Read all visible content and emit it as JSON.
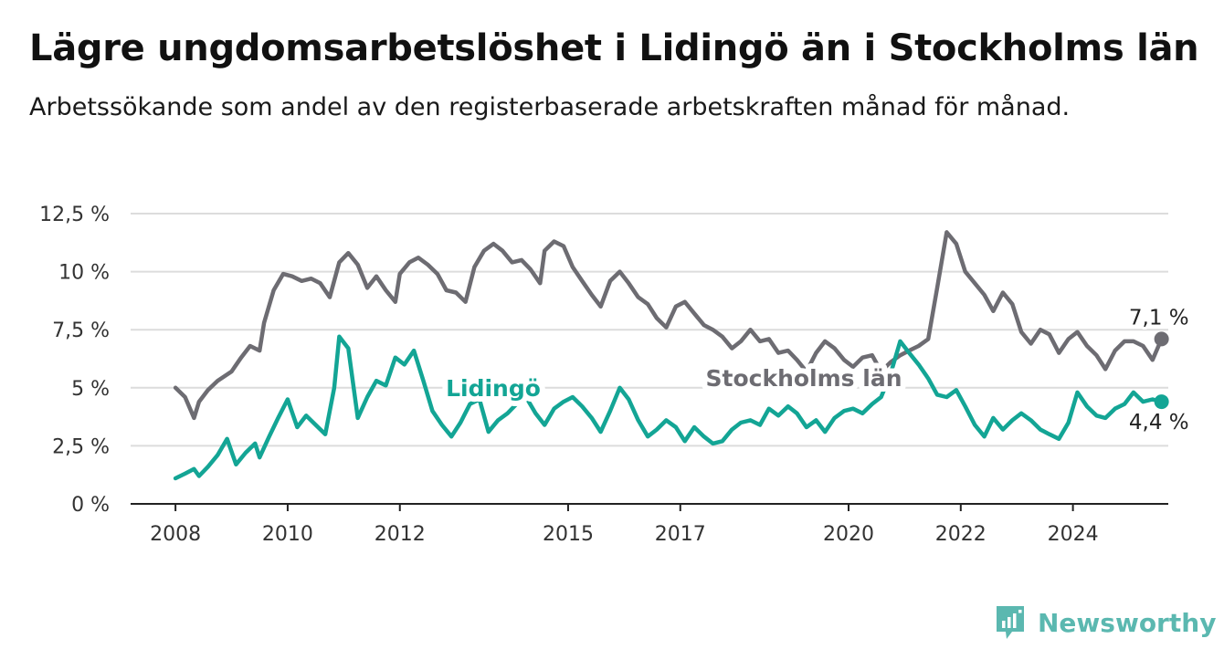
{
  "title": "Lägre ungdomsarbetslöshet i Lidingö än i Stockholms län",
  "subtitle": "Arbetssökande som andel av den registerbaserade arbetskraften månad för månad.",
  "brand": "Newsworthy",
  "colors": {
    "stockholm": "#6d6c72",
    "lidingo": "#13a595",
    "grid": "#dcdcdc",
    "axis": "#222222"
  },
  "chart_data": {
    "type": "line",
    "y_unit": "%",
    "ylim": [
      0,
      12.5
    ],
    "y_ticks": [
      {
        "value": 0,
        "label": "0 %"
      },
      {
        "value": 2.5,
        "label": "2,5 %"
      },
      {
        "value": 5,
        "label": "5 %"
      },
      {
        "value": 7.5,
        "label": "7,5 %"
      },
      {
        "value": 10,
        "label": "10 %"
      },
      {
        "value": 12.5,
        "label": "12,5 %"
      }
    ],
    "x_ticks": [
      {
        "value": 2008,
        "label": "2008"
      },
      {
        "value": 2010,
        "label": "2010"
      },
      {
        "value": 2012,
        "label": "2012"
      },
      {
        "value": 2015,
        "label": "2015"
      },
      {
        "value": 2017,
        "label": "2017"
      },
      {
        "value": 2020,
        "label": "2020"
      },
      {
        "value": 2022,
        "label": "2022"
      },
      {
        "value": 2024,
        "label": "2024"
      }
    ],
    "xlim": [
      2007.2,
      2025.7
    ],
    "grid": true,
    "series": [
      {
        "name": "Stockholms län",
        "key": "stockholm",
        "end_label": "7,1 %",
        "points": [
          [
            2008.0,
            5.0
          ],
          [
            2008.17,
            4.6
          ],
          [
            2008.33,
            3.7
          ],
          [
            2008.42,
            4.4
          ],
          [
            2008.58,
            4.9
          ],
          [
            2008.75,
            5.3
          ],
          [
            2009.0,
            5.7
          ],
          [
            2009.17,
            6.3
          ],
          [
            2009.33,
            6.8
          ],
          [
            2009.5,
            6.6
          ],
          [
            2009.58,
            7.8
          ],
          [
            2009.75,
            9.2
          ],
          [
            2009.92,
            9.9
          ],
          [
            2010.08,
            9.8
          ],
          [
            2010.25,
            9.6
          ],
          [
            2010.42,
            9.7
          ],
          [
            2010.58,
            9.5
          ],
          [
            2010.75,
            8.9
          ],
          [
            2010.92,
            10.4
          ],
          [
            2011.08,
            10.8
          ],
          [
            2011.25,
            10.3
          ],
          [
            2011.42,
            9.3
          ],
          [
            2011.58,
            9.8
          ],
          [
            2011.75,
            9.2
          ],
          [
            2011.92,
            8.7
          ],
          [
            2012.0,
            9.9
          ],
          [
            2012.17,
            10.4
          ],
          [
            2012.33,
            10.6
          ],
          [
            2012.5,
            10.3
          ],
          [
            2012.67,
            9.9
          ],
          [
            2012.83,
            9.2
          ],
          [
            2013.0,
            9.1
          ],
          [
            2013.17,
            8.7
          ],
          [
            2013.33,
            10.2
          ],
          [
            2013.5,
            10.9
          ],
          [
            2013.67,
            11.2
          ],
          [
            2013.83,
            10.9
          ],
          [
            2014.0,
            10.4
          ],
          [
            2014.17,
            10.5
          ],
          [
            2014.33,
            10.1
          ],
          [
            2014.5,
            9.5
          ],
          [
            2014.58,
            10.9
          ],
          [
            2014.75,
            11.3
          ],
          [
            2014.92,
            11.1
          ],
          [
            2015.08,
            10.2
          ],
          [
            2015.25,
            9.6
          ],
          [
            2015.42,
            9.0
          ],
          [
            2015.58,
            8.5
          ],
          [
            2015.75,
            9.6
          ],
          [
            2015.92,
            10.0
          ],
          [
            2016.08,
            9.5
          ],
          [
            2016.25,
            8.9
          ],
          [
            2016.42,
            8.6
          ],
          [
            2016.58,
            8.0
          ],
          [
            2016.75,
            7.6
          ],
          [
            2016.92,
            8.5
          ],
          [
            2017.08,
            8.7
          ],
          [
            2017.25,
            8.2
          ],
          [
            2017.42,
            7.7
          ],
          [
            2017.58,
            7.5
          ],
          [
            2017.75,
            7.2
          ],
          [
            2017.92,
            6.7
          ],
          [
            2018.08,
            7.0
          ],
          [
            2018.25,
            7.5
          ],
          [
            2018.42,
            7.0
          ],
          [
            2018.58,
            7.1
          ],
          [
            2018.75,
            6.5
          ],
          [
            2018.92,
            6.6
          ],
          [
            2019.08,
            6.2
          ],
          [
            2019.25,
            5.7
          ],
          [
            2019.42,
            6.5
          ],
          [
            2019.58,
            7.0
          ],
          [
            2019.75,
            6.7
          ],
          [
            2019.92,
            6.2
          ],
          [
            2020.08,
            5.9
          ],
          [
            2020.25,
            6.3
          ],
          [
            2020.42,
            6.4
          ],
          [
            2020.58,
            5.7
          ],
          [
            2020.75,
            6.1
          ],
          [
            2020.92,
            6.4
          ],
          [
            2021.08,
            6.6
          ],
          [
            2021.25,
            6.8
          ],
          [
            2021.42,
            7.1
          ],
          [
            2021.58,
            9.3
          ],
          [
            2021.75,
            11.7
          ],
          [
            2021.92,
            11.2
          ],
          [
            2022.08,
            10.0
          ],
          [
            2022.25,
            9.5
          ],
          [
            2022.42,
            9.0
          ],
          [
            2022.58,
            8.3
          ],
          [
            2022.75,
            9.1
          ],
          [
            2022.92,
            8.6
          ],
          [
            2023.08,
            7.4
          ],
          [
            2023.25,
            6.9
          ],
          [
            2023.42,
            7.5
          ],
          [
            2023.58,
            7.3
          ],
          [
            2023.75,
            6.5
          ],
          [
            2023.92,
            7.1
          ],
          [
            2024.08,
            7.4
          ],
          [
            2024.25,
            6.8
          ],
          [
            2024.42,
            6.4
          ],
          [
            2024.58,
            5.8
          ],
          [
            2024.75,
            6.6
          ],
          [
            2024.92,
            7.0
          ],
          [
            2025.08,
            7.0
          ],
          [
            2025.25,
            6.8
          ],
          [
            2025.42,
            6.2
          ],
          [
            2025.58,
            7.1
          ]
        ]
      },
      {
        "name": "Lidingö",
        "key": "lidingo",
        "end_label": "4,4 %",
        "points": [
          [
            2008.0,
            1.1
          ],
          [
            2008.17,
            1.3
          ],
          [
            2008.33,
            1.5
          ],
          [
            2008.42,
            1.2
          ],
          [
            2008.58,
            1.6
          ],
          [
            2008.75,
            2.1
          ],
          [
            2008.92,
            2.8
          ],
          [
            2009.08,
            1.7
          ],
          [
            2009.25,
            2.2
          ],
          [
            2009.42,
            2.6
          ],
          [
            2009.5,
            2.0
          ],
          [
            2009.67,
            2.9
          ],
          [
            2009.83,
            3.7
          ],
          [
            2010.0,
            4.5
          ],
          [
            2010.17,
            3.3
          ],
          [
            2010.33,
            3.8
          ],
          [
            2010.5,
            3.4
          ],
          [
            2010.67,
            3.0
          ],
          [
            2010.83,
            5.0
          ],
          [
            2010.92,
            7.2
          ],
          [
            2011.08,
            6.7
          ],
          [
            2011.25,
            3.7
          ],
          [
            2011.42,
            4.6
          ],
          [
            2011.58,
            5.3
          ],
          [
            2011.75,
            5.1
          ],
          [
            2011.92,
            6.3
          ],
          [
            2012.08,
            6.0
          ],
          [
            2012.25,
            6.6
          ],
          [
            2012.42,
            5.3
          ],
          [
            2012.58,
            4.0
          ],
          [
            2012.75,
            3.4
          ],
          [
            2012.92,
            2.9
          ],
          [
            2013.08,
            3.5
          ],
          [
            2013.25,
            4.3
          ],
          [
            2013.42,
            4.5
          ],
          [
            2013.58,
            3.1
          ],
          [
            2013.75,
            3.6
          ],
          [
            2013.92,
            3.9
          ],
          [
            2014.08,
            4.3
          ],
          [
            2014.25,
            4.6
          ],
          [
            2014.42,
            3.9
          ],
          [
            2014.58,
            3.4
          ],
          [
            2014.75,
            4.1
          ],
          [
            2014.92,
            4.4
          ],
          [
            2015.08,
            4.6
          ],
          [
            2015.25,
            4.2
          ],
          [
            2015.42,
            3.7
          ],
          [
            2015.58,
            3.1
          ],
          [
            2015.75,
            4.0
          ],
          [
            2015.92,
            5.0
          ],
          [
            2016.08,
            4.5
          ],
          [
            2016.25,
            3.6
          ],
          [
            2016.42,
            2.9
          ],
          [
            2016.58,
            3.2
          ],
          [
            2016.75,
            3.6
          ],
          [
            2016.92,
            3.3
          ],
          [
            2017.08,
            2.7
          ],
          [
            2017.25,
            3.3
          ],
          [
            2017.42,
            2.9
          ],
          [
            2017.58,
            2.6
          ],
          [
            2017.75,
            2.7
          ],
          [
            2017.92,
            3.2
          ],
          [
            2018.08,
            3.5
          ],
          [
            2018.25,
            3.6
          ],
          [
            2018.42,
            3.4
          ],
          [
            2018.58,
            4.1
          ],
          [
            2018.75,
            3.8
          ],
          [
            2018.92,
            4.2
          ],
          [
            2019.08,
            3.9
          ],
          [
            2019.25,
            3.3
          ],
          [
            2019.42,
            3.6
          ],
          [
            2019.58,
            3.1
          ],
          [
            2019.75,
            3.7
          ],
          [
            2019.92,
            4.0
          ],
          [
            2020.08,
            4.1
          ],
          [
            2020.25,
            3.9
          ],
          [
            2020.42,
            4.3
          ],
          [
            2020.58,
            4.6
          ],
          [
            2020.75,
            5.6
          ],
          [
            2020.92,
            7.0
          ],
          [
            2021.08,
            6.5
          ],
          [
            2021.25,
            6.0
          ],
          [
            2021.42,
            5.4
          ],
          [
            2021.58,
            4.7
          ],
          [
            2021.75,
            4.6
          ],
          [
            2021.92,
            4.9
          ],
          [
            2022.08,
            4.2
          ],
          [
            2022.25,
            3.4
          ],
          [
            2022.42,
            2.9
          ],
          [
            2022.58,
            3.7
          ],
          [
            2022.75,
            3.2
          ],
          [
            2022.92,
            3.6
          ],
          [
            2023.08,
            3.9
          ],
          [
            2023.25,
            3.6
          ],
          [
            2023.42,
            3.2
          ],
          [
            2023.58,
            3.0
          ],
          [
            2023.75,
            2.8
          ],
          [
            2023.92,
            3.5
          ],
          [
            2024.08,
            4.8
          ],
          [
            2024.25,
            4.2
          ],
          [
            2024.42,
            3.8
          ],
          [
            2024.58,
            3.7
          ],
          [
            2024.75,
            4.1
          ],
          [
            2024.92,
            4.3
          ],
          [
            2025.08,
            4.8
          ],
          [
            2025.25,
            4.4
          ],
          [
            2025.42,
            4.5
          ],
          [
            2025.58,
            4.4
          ]
        ]
      }
    ]
  }
}
